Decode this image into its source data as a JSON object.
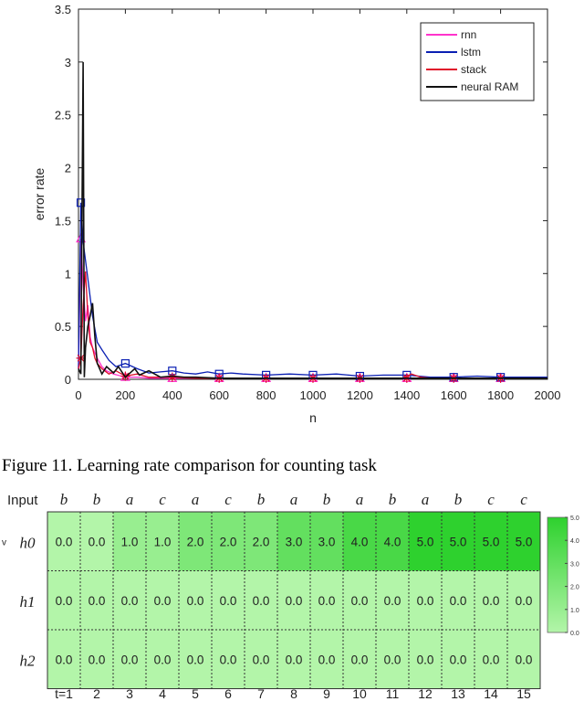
{
  "figure_caption": "Figure 11.  Learning rate comparison for counting task",
  "chart_data": [
    {
      "type": "line",
      "xlabel": "n",
      "ylabel": "error rate",
      "xlim": [
        0,
        2000
      ],
      "ylim": [
        0,
        3.5
      ],
      "xticks": [
        0,
        200,
        400,
        600,
        800,
        1000,
        1200,
        1400,
        1600,
        1800,
        2000
      ],
      "yticks": [
        0,
        0.5,
        1,
        1.5,
        2,
        2.5,
        3,
        3.5
      ],
      "grid": false,
      "legend_position": "top-right",
      "series": [
        {
          "name": "rnn",
          "color": "#ff33cc",
          "marker": "triangle",
          "x": [
            0,
            10,
            20,
            30,
            40,
            50,
            60,
            80,
            100,
            120,
            150,
            200,
            250,
            300,
            400,
            500,
            600,
            700,
            800,
            900,
            1000,
            1200,
            1400,
            1600,
            1800,
            2000
          ],
          "y": [
            0.1,
            1.33,
            0.9,
            0.55,
            0.7,
            0.4,
            0.3,
            0.2,
            0.12,
            0.08,
            0.05,
            0.02,
            0.02,
            0.01,
            0.01,
            0.01,
            0.01,
            0.01,
            0.01,
            0.01,
            0.01,
            0.01,
            0.01,
            0.01,
            0.01,
            0.01
          ],
          "marker_x": [
            10,
            200,
            400,
            600,
            800,
            1000,
            1200,
            1400,
            1600,
            1800
          ],
          "marker_y": [
            1.33,
            0.02,
            0.01,
            0.01,
            0.01,
            0.01,
            0.01,
            0.01,
            0.01,
            0.01
          ]
        },
        {
          "name": "lstm",
          "color": "#0a1fb3",
          "marker": "square",
          "x": [
            0,
            10,
            20,
            40,
            60,
            80,
            100,
            130,
            160,
            200,
            250,
            300,
            350,
            400,
            450,
            500,
            550,
            600,
            650,
            700,
            800,
            900,
            1000,
            1100,
            1200,
            1300,
            1400,
            1500,
            1600,
            1700,
            1800,
            1900,
            2000
          ],
          "y": [
            0.1,
            1.67,
            1.3,
            0.95,
            0.6,
            0.35,
            0.28,
            0.18,
            0.12,
            0.15,
            0.1,
            0.06,
            0.07,
            0.08,
            0.06,
            0.05,
            0.07,
            0.05,
            0.06,
            0.05,
            0.04,
            0.05,
            0.04,
            0.05,
            0.03,
            0.04,
            0.04,
            0.02,
            0.02,
            0.03,
            0.02,
            0.02,
            0.02
          ],
          "marker_x": [
            10,
            200,
            400,
            600,
            800,
            1000,
            1200,
            1400,
            1600,
            1800
          ],
          "marker_y": [
            1.67,
            0.15,
            0.08,
            0.05,
            0.04,
            0.04,
            0.03,
            0.04,
            0.02,
            0.02
          ]
        },
        {
          "name": "stack",
          "color": "#e0102a",
          "marker": "star",
          "x": [
            0,
            10,
            20,
            30,
            40,
            50,
            60,
            70,
            80,
            100,
            130,
            160,
            200,
            250,
            300,
            400,
            500,
            600,
            800,
            1000,
            1200,
            1380,
            1420,
            1460,
            1500,
            1600,
            1800,
            2000
          ],
          "y": [
            0.1,
            0.2,
            0.7,
            1.02,
            0.6,
            0.35,
            0.3,
            0.2,
            0.15,
            0.1,
            0.05,
            0.08,
            0.03,
            0.05,
            0.02,
            0.02,
            0.01,
            0.01,
            0.01,
            0.01,
            0.01,
            0.01,
            0.05,
            0.02,
            0.01,
            0.01,
            0.01,
            0.01
          ],
          "marker_x": [
            10,
            200,
            400,
            600,
            800,
            1000,
            1200,
            1400,
            1600,
            1800
          ],
          "marker_y": [
            0.2,
            0.03,
            0.02,
            0.01,
            0.01,
            0.01,
            0.01,
            0.01,
            0.01,
            0.01
          ]
        },
        {
          "name": "neural RAM",
          "color": "#111111",
          "marker": "none",
          "x": [
            0,
            10,
            20,
            25,
            30,
            40,
            50,
            60,
            70,
            80,
            100,
            120,
            150,
            170,
            200,
            240,
            260,
            300,
            350,
            400,
            450,
            500,
            600,
            700,
            800,
            1000,
            1200,
            1400,
            1600,
            1800,
            2000
          ],
          "y": [
            0.1,
            0.05,
            3.0,
            0.02,
            0.3,
            0.5,
            0.6,
            0.72,
            0.4,
            0.15,
            0.05,
            0.12,
            0.06,
            0.12,
            0.02,
            0.1,
            0.04,
            0.08,
            0.02,
            0.03,
            0.02,
            0.02,
            0.01,
            0.01,
            0.01,
            0.01,
            0.01,
            0.01,
            0.01,
            0.01,
            0.01
          ],
          "marker_x": [],
          "marker_y": []
        }
      ]
    },
    {
      "type": "heatmap",
      "row_header": "Input",
      "inputs": [
        "b",
        "b",
        "a",
        "c",
        "a",
        "c",
        "b",
        "a",
        "b",
        "a",
        "b",
        "a",
        "b",
        "c",
        "c"
      ],
      "columns": [
        "t=1",
        "2",
        "3",
        "4",
        "5",
        "6",
        "7",
        "8",
        "9",
        "10",
        "11",
        "12",
        "13",
        "14",
        "15"
      ],
      "rows": [
        {
          "label": "h0",
          "values": [
            0.0,
            0.0,
            1.0,
            1.0,
            2.0,
            2.0,
            2.0,
            3.0,
            3.0,
            4.0,
            4.0,
            5.0,
            5.0,
            5.0,
            5.0
          ]
        },
        {
          "label": "h1",
          "values": [
            0.0,
            0.0,
            0.0,
            0.0,
            0.0,
            0.0,
            0.0,
            0.0,
            0.0,
            0.0,
            0.0,
            0.0,
            0.0,
            0.0,
            0.0
          ]
        },
        {
          "label": "h2",
          "values": [
            0.0,
            0.0,
            0.0,
            0.0,
            0.0,
            0.0,
            0.0,
            0.0,
            0.0,
            0.0,
            0.0,
            0.0,
            0.0,
            0.0,
            0.0
          ]
        }
      ],
      "colorbar_ticks": [
        "5.0",
        "4.0",
        "3.0",
        "2.0",
        "1.0",
        "0.0"
      ],
      "colorbar_range": [
        0,
        5
      ],
      "color_low": "#b3f5a9",
      "color_high": "#2ed12e",
      "row_marker": "v"
    }
  ]
}
